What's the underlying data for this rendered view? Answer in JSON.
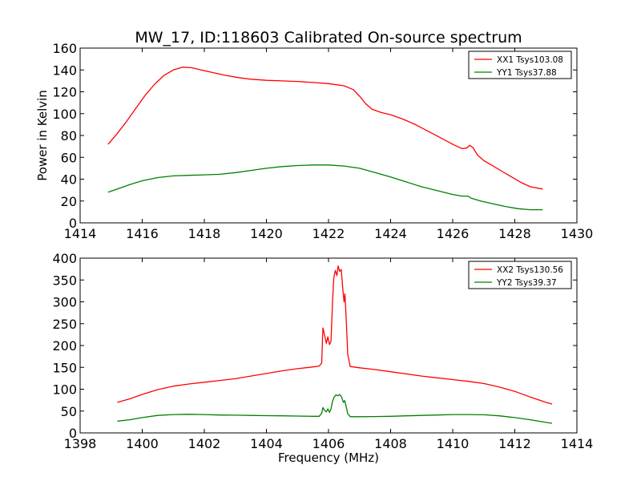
{
  "chart_data": {
    "title": "MW_17, ID:118603 Calibrated On-source spectrum",
    "xlabel": "Frequency (MHz)",
    "ylabel": "Power in Kelvin",
    "panels": [
      {
        "type": "line",
        "xlim": [
          1414,
          1430
        ],
        "ylim": [
          0,
          160
        ],
        "xticks": [
          1414,
          1416,
          1418,
          1420,
          1422,
          1424,
          1426,
          1428,
          1430
        ],
        "yticks": [
          0,
          20,
          40,
          60,
          80,
          100,
          120,
          140,
          160
        ],
        "legend_position": "top-right",
        "grid": false,
        "series": [
          {
            "name": "XX1 Tsys103.08",
            "color": "#ff0000",
            "points": [
              [
                1414.9,
                72
              ],
              [
                1415.2,
                82
              ],
              [
                1415.5,
                93
              ],
              [
                1415.8,
                105
              ],
              [
                1416.1,
                117
              ],
              [
                1416.4,
                127
              ],
              [
                1416.7,
                135
              ],
              [
                1417.0,
                140
              ],
              [
                1417.3,
                142.5
              ],
              [
                1417.6,
                142
              ],
              [
                1417.9,
                140
              ],
              [
                1418.3,
                137.5
              ],
              [
                1418.7,
                135
              ],
              [
                1419.1,
                133
              ],
              [
                1419.5,
                131.5
              ],
              [
                1420.0,
                130.5
              ],
              [
                1420.5,
                130
              ],
              [
                1421.0,
                129.5
              ],
              [
                1421.5,
                128.5
              ],
              [
                1422.0,
                127.5
              ],
              [
                1422.5,
                125.5
              ],
              [
                1422.8,
                122
              ],
              [
                1423.0,
                116
              ],
              [
                1423.2,
                109
              ],
              [
                1423.4,
                104
              ],
              [
                1423.7,
                101
              ],
              [
                1424.0,
                99
              ],
              [
                1424.4,
                95
              ],
              [
                1424.8,
                90
              ],
              [
                1425.2,
                84
              ],
              [
                1425.6,
                78
              ],
              [
                1426.0,
                72
              ],
              [
                1426.3,
                68
              ],
              [
                1426.45,
                68.5
              ],
              [
                1426.55,
                71
              ],
              [
                1426.65,
                69
              ],
              [
                1426.8,
                62
              ],
              [
                1427.0,
                57
              ],
              [
                1427.3,
                52
              ],
              [
                1427.6,
                47
              ],
              [
                1427.9,
                42
              ],
              [
                1428.2,
                37
              ],
              [
                1428.5,
                33
              ],
              [
                1428.9,
                31
              ]
            ]
          },
          {
            "name": "YY1 Tsys37.88",
            "color": "#008000",
            "points": [
              [
                1414.9,
                28
              ],
              [
                1415.2,
                31
              ],
              [
                1415.6,
                35
              ],
              [
                1416.0,
                38.5
              ],
              [
                1416.5,
                41.5
              ],
              [
                1417.0,
                43
              ],
              [
                1417.5,
                43.5
              ],
              [
                1418.0,
                44
              ],
              [
                1418.5,
                44.5
              ],
              [
                1419.0,
                46
              ],
              [
                1419.5,
                48
              ],
              [
                1420.0,
                50
              ],
              [
                1420.5,
                51.5
              ],
              [
                1421.0,
                52.5
              ],
              [
                1421.5,
                53
              ],
              [
                1422.0,
                53
              ],
              [
                1422.5,
                52
              ],
              [
                1423.0,
                50
              ],
              [
                1423.5,
                46
              ],
              [
                1424.0,
                42
              ],
              [
                1424.5,
                37.5
              ],
              [
                1425.0,
                33
              ],
              [
                1425.5,
                29.5
              ],
              [
                1426.0,
                26
              ],
              [
                1426.3,
                24.5
              ],
              [
                1426.5,
                24.5
              ],
              [
                1426.6,
                22.5
              ],
              [
                1426.9,
                20
              ],
              [
                1427.3,
                17.5
              ],
              [
                1427.7,
                15
              ],
              [
                1428.1,
                13
              ],
              [
                1428.5,
                12
              ],
              [
                1428.9,
                12
              ]
            ]
          }
        ]
      },
      {
        "type": "line",
        "xlim": [
          1398,
          1414
        ],
        "ylim": [
          0,
          400
        ],
        "xticks": [
          1398,
          1400,
          1402,
          1404,
          1406,
          1408,
          1410,
          1412,
          1414
        ],
        "yticks": [
          0,
          50,
          100,
          150,
          200,
          250,
          300,
          350,
          400
        ],
        "legend_position": "top-right",
        "grid": false,
        "series": [
          {
            "name": "XX2 Tsys130.56",
            "color": "#ff0000",
            "points": [
              [
                1399.2,
                70
              ],
              [
                1399.6,
                78
              ],
              [
                1400.0,
                88
              ],
              [
                1400.5,
                99
              ],
              [
                1401.0,
                107
              ],
              [
                1401.5,
                112
              ],
              [
                1402.0,
                116
              ],
              [
                1402.5,
                120
              ],
              [
                1403.0,
                124
              ],
              [
                1403.5,
                130
              ],
              [
                1404.0,
                136
              ],
              [
                1404.5,
                142
              ],
              [
                1405.0,
                147
              ],
              [
                1405.5,
                151
              ],
              [
                1405.7,
                153
              ],
              [
                1405.78,
                160
              ],
              [
                1405.82,
                240
              ],
              [
                1405.87,
                225
              ],
              [
                1405.93,
                205
              ],
              [
                1405.98,
                220
              ],
              [
                1406.03,
                202
              ],
              [
                1406.08,
                210
              ],
              [
                1406.13,
                300
              ],
              [
                1406.17,
                355
              ],
              [
                1406.22,
                372
              ],
              [
                1406.27,
                360
              ],
              [
                1406.31,
                382
              ],
              [
                1406.36,
                370
              ],
              [
                1406.41,
                374
              ],
              [
                1406.46,
                330
              ],
              [
                1406.5,
                300
              ],
              [
                1406.53,
                318
              ],
              [
                1406.57,
                260
              ],
              [
                1406.62,
                180
              ],
              [
                1406.7,
                152
              ],
              [
                1407.0,
                149
              ],
              [
                1407.5,
                145
              ],
              [
                1408.0,
                140
              ],
              [
                1408.5,
                135
              ],
              [
                1409.0,
                130
              ],
              [
                1409.5,
                126
              ],
              [
                1410.0,
                122
              ],
              [
                1410.5,
                118
              ],
              [
                1411.0,
                113
              ],
              [
                1411.5,
                105
              ],
              [
                1412.0,
                95
              ],
              [
                1412.5,
                82
              ],
              [
                1413.0,
                70
              ],
              [
                1413.2,
                66
              ]
            ]
          },
          {
            "name": "YY2 Tsys39.37",
            "color": "#008000",
            "points": [
              [
                1399.2,
                27
              ],
              [
                1399.6,
                30
              ],
              [
                1400.0,
                35
              ],
              [
                1400.5,
                40
              ],
              [
                1401.0,
                42
              ],
              [
                1401.5,
                42.5
              ],
              [
                1402.0,
                42
              ],
              [
                1402.5,
                41
              ],
              [
                1403.0,
                40.5
              ],
              [
                1403.5,
                40
              ],
              [
                1404.0,
                39.5
              ],
              [
                1404.5,
                39
              ],
              [
                1405.0,
                38.5
              ],
              [
                1405.5,
                38
              ],
              [
                1405.7,
                38
              ],
              [
                1405.78,
                45
              ],
              [
                1405.82,
                58
              ],
              [
                1405.87,
                52
              ],
              [
                1405.93,
                48
              ],
              [
                1405.98,
                55
              ],
              [
                1406.03,
                47
              ],
              [
                1406.08,
                55
              ],
              [
                1406.13,
                72
              ],
              [
                1406.18,
                82
              ],
              [
                1406.24,
                87
              ],
              [
                1406.3,
                85
              ],
              [
                1406.36,
                88
              ],
              [
                1406.42,
                82
              ],
              [
                1406.48,
                70
              ],
              [
                1406.52,
                74
              ],
              [
                1406.57,
                60
              ],
              [
                1406.62,
                44
              ],
              [
                1406.7,
                37
              ],
              [
                1407.0,
                37
              ],
              [
                1407.5,
                37.5
              ],
              [
                1408.0,
                38
              ],
              [
                1408.5,
                39
              ],
              [
                1409.0,
                40
              ],
              [
                1409.5,
                41
              ],
              [
                1410.0,
                42
              ],
              [
                1410.5,
                42
              ],
              [
                1411.0,
                41.5
              ],
              [
                1411.5,
                39
              ],
              [
                1412.0,
                35
              ],
              [
                1412.5,
                30
              ],
              [
                1413.0,
                24
              ],
              [
                1413.2,
                22
              ]
            ]
          }
        ]
      }
    ]
  }
}
